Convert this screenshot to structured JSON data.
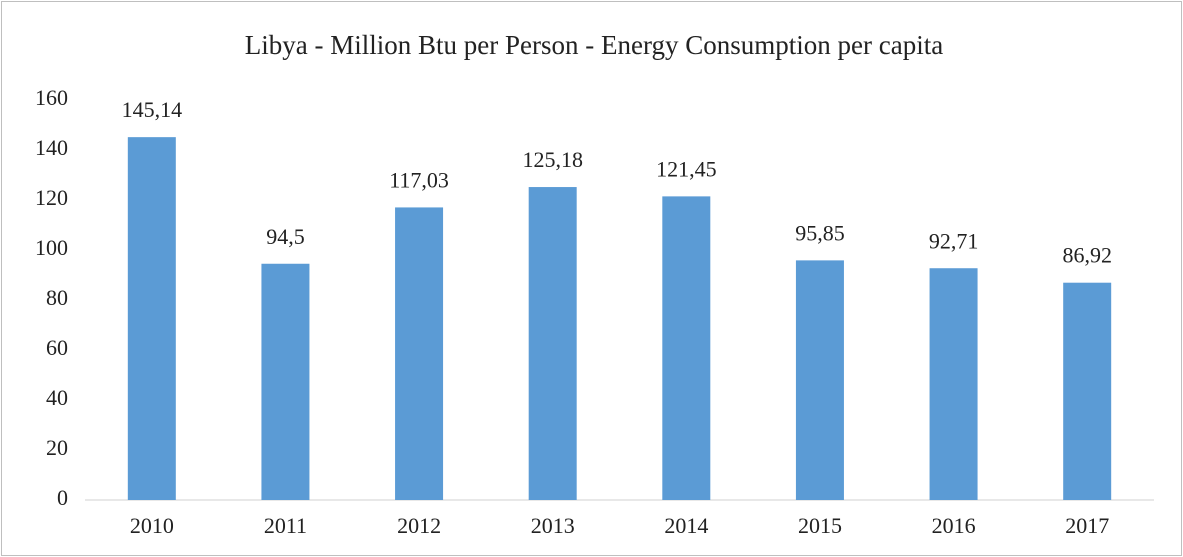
{
  "chart_data": {
    "type": "bar",
    "title": "Libya - Million Btu per Person - Energy Consumption per capita",
    "categories": [
      "2010",
      "2011",
      "2012",
      "2013",
      "2014",
      "2015",
      "2016",
      "2017"
    ],
    "values": [
      145.14,
      94.5,
      117.03,
      125.18,
      121.45,
      95.85,
      92.71,
      86.92
    ],
    "value_labels": [
      "145,14",
      "94,5",
      "117,03",
      "125,18",
      "121,45",
      "95,85",
      "92,71",
      "86,92"
    ],
    "color": "#5b9bd5",
    "ylim": [
      0,
      160
    ],
    "yticks": [
      0,
      20,
      40,
      60,
      80,
      100,
      120,
      140,
      160
    ],
    "grid": false
  }
}
